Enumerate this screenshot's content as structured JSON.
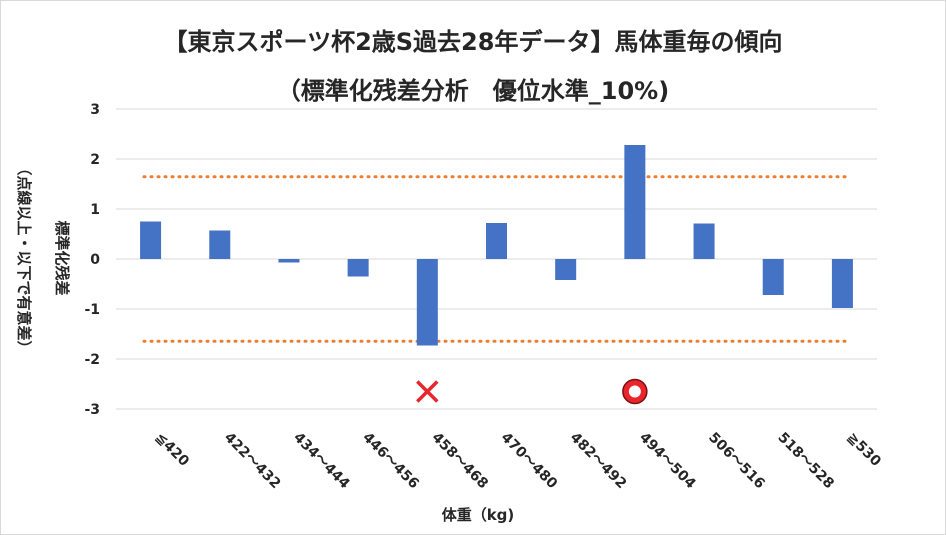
{
  "chart_data": {
    "type": "bar",
    "title": "【東京スポーツ杯2歳S過去28年データ】馬体重毎の傾向",
    "subtitle": "（標準化残差分析　優位水準_10%)",
    "xlabel": "体重（kg)",
    "ylabel_main": "標準化残差",
    "ylabel_sub": "（点線以上・以下で有意差）",
    "ylim": [
      -3,
      3
    ],
    "yticks": [
      3,
      2,
      1,
      0,
      -1,
      -2,
      -3
    ],
    "categories": [
      "≦420",
      "422～432",
      "434～444",
      "446～456",
      "458～468",
      "470～480",
      "482～492",
      "494～504",
      "506～516",
      "518～528",
      "≧530"
    ],
    "values": [
      0.75,
      0.57,
      -0.07,
      -0.35,
      -1.73,
      0.72,
      -0.42,
      2.28,
      0.71,
      -0.72,
      -0.98
    ],
    "threshold_lines": [
      1.645,
      -1.645
    ],
    "markers": [
      {
        "category": "458～468",
        "symbol": "cross",
        "y": -2.65
      },
      {
        "category": "494～504",
        "symbol": "circle",
        "y": -2.65
      }
    ],
    "colors": {
      "bar": "#4472c4",
      "threshold": "#ed7d31",
      "grid": "#d9d9d9",
      "cross": "#e8262b",
      "circle": "#e8262b"
    },
    "grid": true,
    "legend": "none"
  }
}
